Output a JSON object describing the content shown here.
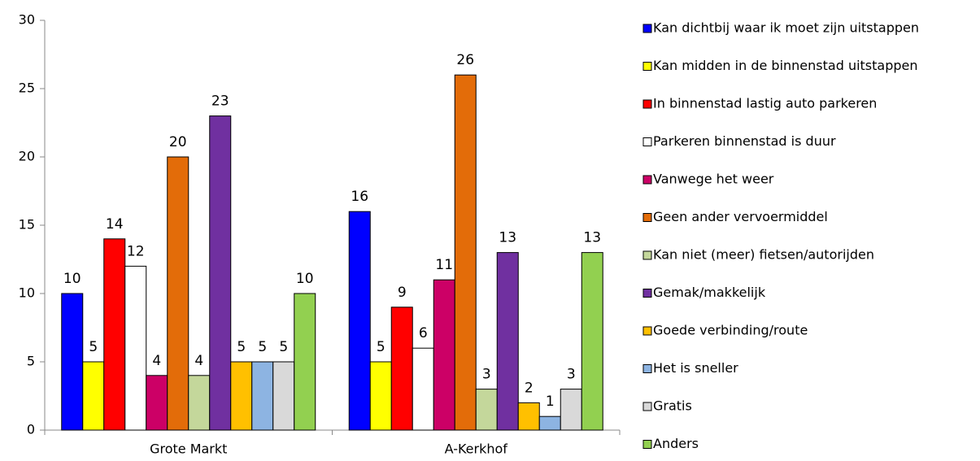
{
  "chart_data": {
    "type": "bar",
    "categories": [
      "Grote Markt",
      "A-Kerkhof"
    ],
    "series": [
      {
        "name": "Kan dichtbij waar ik moet zijn uitstappen",
        "color": "#0000ff",
        "values": [
          10,
          16
        ]
      },
      {
        "name": "Kan midden in de binnenstad uitstappen",
        "color": "#ffff00",
        "values": [
          5,
          5
        ]
      },
      {
        "name": "In binnenstad lastig auto parkeren",
        "color": "#ff0000",
        "values": [
          14,
          9
        ]
      },
      {
        "name": "Parkeren binnenstad is duur",
        "color": "#ffffff",
        "values": [
          12,
          6
        ]
      },
      {
        "name": "Vanwege het weer",
        "color": "#cc0066",
        "values": [
          4,
          11
        ]
      },
      {
        "name": "Geen ander vervoermiddel",
        "color": "#e36c09",
        "values": [
          20,
          26
        ]
      },
      {
        "name": "Kan niet (meer) fietsen/autorijden",
        "color": "#c4d79b",
        "values": [
          4,
          3
        ]
      },
      {
        "name": "Gemak/makkelijk",
        "color": "#7030a0",
        "values": [
          23,
          13
        ]
      },
      {
        "name": "Goede verbinding/route",
        "color": "#ffc000",
        "values": [
          5,
          2
        ]
      },
      {
        "name": "Het is sneller",
        "color": "#8db4e2",
        "values": [
          5,
          1
        ]
      },
      {
        "name": "Gratis",
        "color": "#d9d9d9",
        "values": [
          5,
          3
        ]
      },
      {
        "name": "Anders",
        "color": "#92d050",
        "values": [
          10,
          13
        ]
      }
    ],
    "ylim": [
      0,
      30
    ],
    "yticks": [
      0,
      5,
      10,
      15,
      20,
      25,
      30
    ],
    "legend": "right"
  }
}
